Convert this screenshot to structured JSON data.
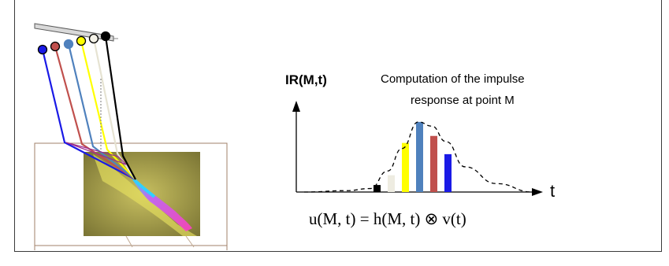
{
  "diagram": {
    "y_axis_label": "IR(M,t)",
    "caption_line1": "Computation of the impulse",
    "caption_line2": "response at point M",
    "x_axis_label": "t",
    "equation": "u(M, t) = h(M, t) ⊗ v(t)",
    "colors": {
      "blue": "#1a1ae6",
      "red": "#c0504d",
      "steel_blue": "#4f81bd",
      "yellow": "#ffff00",
      "beige": "#eeece1",
      "black": "#000000"
    }
  },
  "chart_data": {
    "type": "bar",
    "title": "",
    "xlabel": "t",
    "ylabel": "IR(M,t)",
    "categories": [
      "",
      "",
      "",
      "",
      "",
      ""
    ],
    "values": [
      0.1,
      0.24,
      0.7,
      1.0,
      0.8,
      0.54
    ],
    "series_colors": [
      "#000000",
      "#eeece1",
      "#ffff00",
      "#4f81bd",
      "#c0504d",
      "#1a1ae6"
    ],
    "envelope": "dashed",
    "ylim": [
      0,
      1.1
    ]
  }
}
